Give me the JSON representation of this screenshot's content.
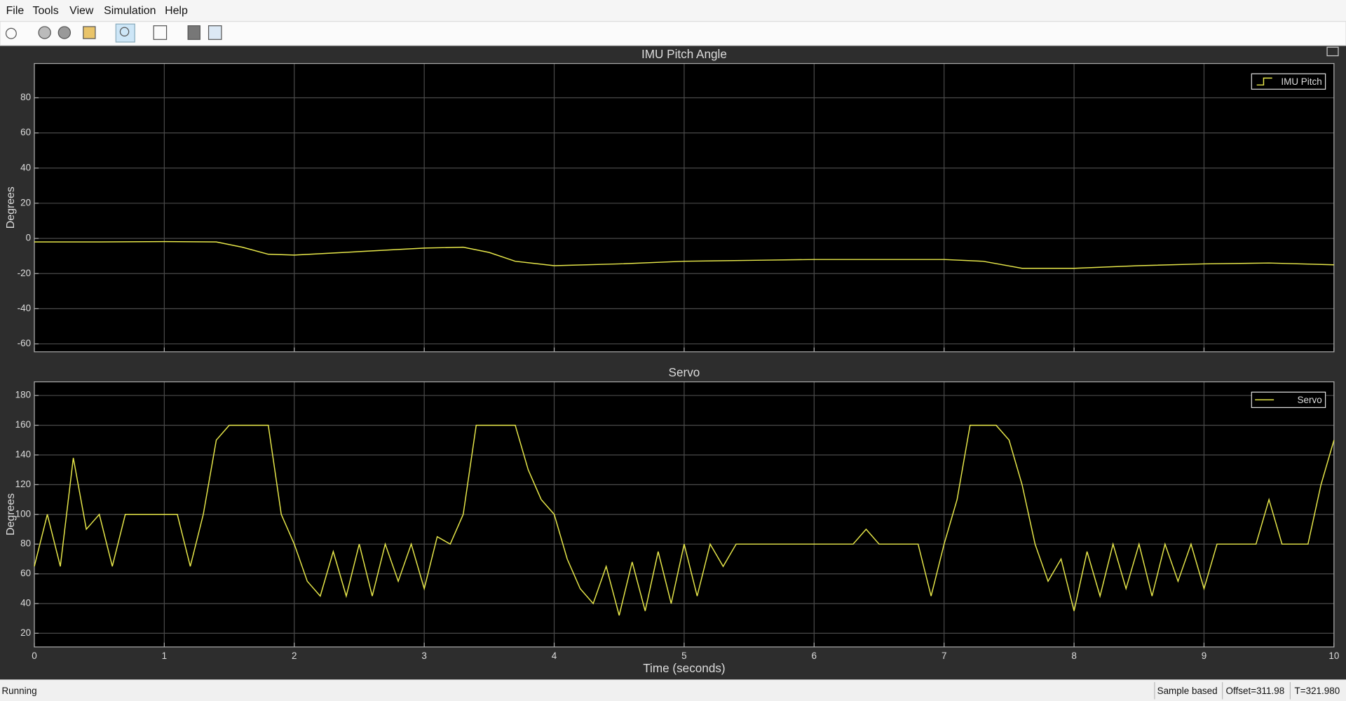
{
  "menu": [
    "File",
    "Tools",
    "View",
    "Simulation",
    "Help"
  ],
  "status": {
    "state": "Running",
    "mode": "Sample based",
    "offset": "Offset=311.98",
    "time": "T=321.980"
  },
  "chart_data": [
    {
      "type": "line",
      "title": "IMU Pitch Angle",
      "ylabel": "Degrees",
      "x": [
        0,
        0.5,
        1,
        1.4,
        1.6,
        1.8,
        2,
        2.5,
        3,
        3.3,
        3.5,
        3.7,
        4,
        4.5,
        5,
        5.5,
        6,
        7,
        7.3,
        7.6,
        8,
        8.5,
        9,
        9.5,
        10
      ],
      "series": [
        {
          "name": "IMU Pitch",
          "color": "#e8e84a",
          "values": [
            -2,
            -2,
            -1.8,
            -2,
            -5,
            -9,
            -9.5,
            -7.5,
            -5.5,
            -5,
            -8,
            -13,
            -15.5,
            -14.5,
            -13,
            -12.5,
            -12,
            -12,
            -13,
            -17,
            -17,
            -15.5,
            -14.5,
            -14,
            -15
          ]
        }
      ],
      "xlim": [
        0,
        10
      ],
      "ylim": [
        -64.5,
        99.5
      ],
      "yticks": [
        -60,
        -40,
        -20,
        0,
        20,
        40,
        60,
        80
      ],
      "grid": true,
      "legend": "upper right",
      "legend_icon": "stairs"
    },
    {
      "type": "line",
      "title": "Servo",
      "ylabel": "Degrees",
      "xlabel": "Time (seconds)",
      "x": [
        0,
        0.1,
        0.2,
        0.3,
        0.4,
        0.5,
        0.6,
        0.7,
        0.8,
        0.9,
        1,
        1.1,
        1.2,
        1.3,
        1.4,
        1.5,
        1.6,
        1.7,
        1.8,
        1.9,
        2,
        2.1,
        2.2,
        2.3,
        2.4,
        2.5,
        2.6,
        2.7,
        2.8,
        2.9,
        3,
        3.1,
        3.2,
        3.3,
        3.4,
        3.5,
        3.6,
        3.7,
        3.8,
        3.9,
        4,
        4.1,
        4.2,
        4.3,
        4.4,
        4.5,
        4.6,
        4.7,
        4.8,
        4.9,
        5,
        5.1,
        5.2,
        5.3,
        5.4,
        5.5,
        5.6,
        5.7,
        5.8,
        5.9,
        6,
        6.1,
        6.2,
        6.3,
        6.4,
        6.5,
        6.6,
        6.7,
        6.8,
        6.9,
        7,
        7.1,
        7.2,
        7.3,
        7.4,
        7.5,
        7.6,
        7.7,
        7.8,
        7.9,
        8,
        8.1,
        8.2,
        8.3,
        8.4,
        8.5,
        8.6,
        8.7,
        8.8,
        8.9,
        9,
        9.1,
        9.2,
        9.3,
        9.4,
        9.5,
        9.6,
        9.7,
        9.8,
        9.9,
        10
      ],
      "series": [
        {
          "name": "Servo",
          "color": "#e8e84a",
          "values": [
            65,
            100,
            65,
            138,
            90,
            100,
            65,
            100,
            100,
            100,
            100,
            100,
            65,
            100,
            150,
            160,
            160,
            160,
            160,
            100,
            80,
            55,
            45,
            75,
            45,
            80,
            45,
            80,
            55,
            80,
            50,
            85,
            80,
            100,
            160,
            160,
            160,
            160,
            130,
            110,
            100,
            70,
            50,
            40,
            65,
            32,
            68,
            35,
            75,
            40,
            80,
            45,
            80,
            65,
            80,
            80,
            80,
            80,
            80,
            80,
            80,
            80,
            80,
            80,
            90,
            80,
            80,
            80,
            80,
            45,
            80,
            110,
            160,
            160,
            160,
            150,
            120,
            80,
            55,
            70,
            35,
            75,
            45,
            80,
            50,
            80,
            45,
            80,
            55,
            80,
            50,
            80,
            80,
            80,
            80,
            110,
            80,
            80,
            80,
            120,
            150
          ]
        }
      ],
      "xlim": [
        0,
        10
      ],
      "xticks": [
        0,
        1,
        2,
        3,
        4,
        5,
        6,
        7,
        8,
        9,
        10
      ],
      "ylim": [
        10.8,
        189.2
      ],
      "yticks": [
        20,
        40,
        60,
        80,
        100,
        120,
        140,
        160,
        180
      ],
      "grid": true,
      "legend": "upper right",
      "legend_icon": "line"
    }
  ]
}
